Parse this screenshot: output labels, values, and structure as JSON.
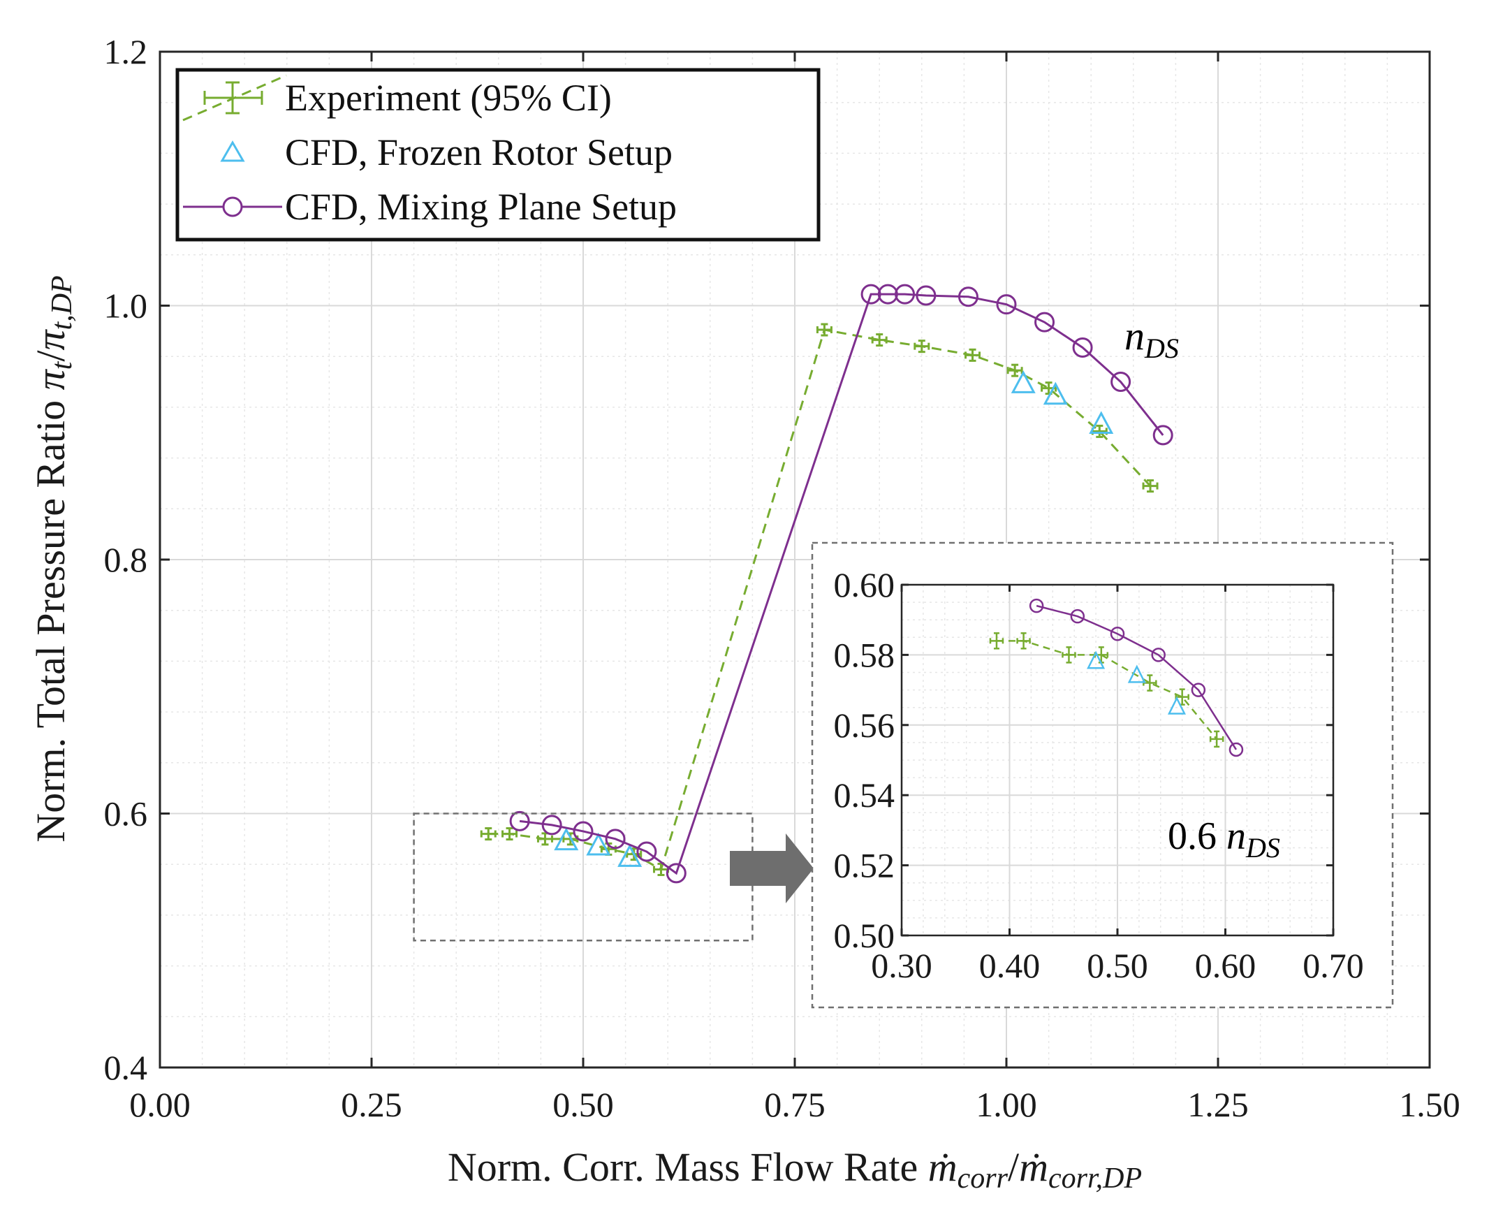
{
  "chart_data": [
    {
      "type": "line",
      "xlabel_text": "Norm. Corr. Mass Flow Rate",
      "xlabel_math": "ṁcorr / ṁcorr,DP",
      "ylabel_text": "Norm. Total Pressure Ratio",
      "ylabel_math": "πt / πt,DP",
      "xlim": [
        0.0,
        1.5
      ],
      "ylim": [
        0.4,
        1.2
      ],
      "x_ticks": [
        "0.00",
        "0.25",
        "0.50",
        "0.75",
        "1.00",
        "1.25",
        "1.50"
      ],
      "y_ticks": [
        "0.4",
        "0.6",
        "0.8",
        "1.0",
        "1.2"
      ],
      "grid": true,
      "legend_position": "top-left",
      "series": [
        {
          "name": "Experiment (95% CI)",
          "color": "#77ac30",
          "style": "dashed",
          "marker": "errorbar",
          "x": [
            0.388,
            0.413,
            0.455,
            0.485,
            0.53,
            0.56,
            0.592,
            0.785,
            0.85,
            0.9,
            0.96,
            1.01,
            1.05,
            1.11,
            1.17
          ],
          "y": [
            0.584,
            0.584,
            0.58,
            0.58,
            0.572,
            0.568,
            0.556,
            0.981,
            0.973,
            0.968,
            0.961,
            0.949,
            0.935,
            0.901,
            0.858
          ]
        },
        {
          "name": "CFD, Frozen Rotor Setup",
          "color": "#4dbeee",
          "style": "none",
          "marker": "triangle",
          "x": [
            0.48,
            0.518,
            0.555,
            1.02,
            1.058,
            1.112
          ],
          "y": [
            0.578,
            0.574,
            0.565,
            0.938,
            0.929,
            0.906
          ]
        },
        {
          "name": "CFD, Mixing Plane Setup",
          "color": "#7e2f8e",
          "style": "solid",
          "marker": "circle",
          "x": [
            0.425,
            0.463,
            0.5,
            0.538,
            0.575,
            0.61,
            0.84,
            0.86,
            0.88,
            0.905,
            0.955,
            1.0,
            1.045,
            1.09,
            1.135,
            1.185
          ],
          "y": [
            0.594,
            0.591,
            0.586,
            0.58,
            0.57,
            0.553,
            1.009,
            1.009,
            1.009,
            1.008,
            1.007,
            1.001,
            0.987,
            0.967,
            0.94,
            0.898
          ]
        }
      ],
      "annotations": [
        "nDS",
        "0.6 nDS"
      ],
      "zoom_box": {
        "xlim": [
          0.3,
          0.7
        ],
        "ylim": [
          0.5,
          0.6
        ]
      }
    },
    {
      "type": "line",
      "role": "inset",
      "xlim": [
        0.3,
        0.7
      ],
      "ylim": [
        0.5,
        0.6
      ],
      "x_ticks": [
        "0.30",
        "0.40",
        "0.50",
        "0.60",
        "0.70"
      ],
      "y_ticks": [
        "0.50",
        "0.52",
        "0.54",
        "0.56",
        "0.58",
        "0.60"
      ],
      "grid": true,
      "series": [
        {
          "color": "#77ac30",
          "style": "dashed",
          "marker": "errorbar",
          "x": [
            0.388,
            0.413,
            0.455,
            0.485,
            0.53,
            0.56,
            0.592
          ],
          "y": [
            0.584,
            0.584,
            0.58,
            0.58,
            0.572,
            0.568,
            0.556
          ]
        },
        {
          "color": "#4dbeee",
          "style": "none",
          "marker": "triangle",
          "x": [
            0.48,
            0.518,
            0.555
          ],
          "y": [
            0.578,
            0.574,
            0.565
          ]
        },
        {
          "color": "#7e2f8e",
          "style": "solid",
          "marker": "circle",
          "x": [
            0.425,
            0.463,
            0.5,
            0.538,
            0.575,
            0.61
          ],
          "y": [
            0.594,
            0.591,
            0.586,
            0.58,
            0.57,
            0.553
          ]
        }
      ]
    }
  ]
}
